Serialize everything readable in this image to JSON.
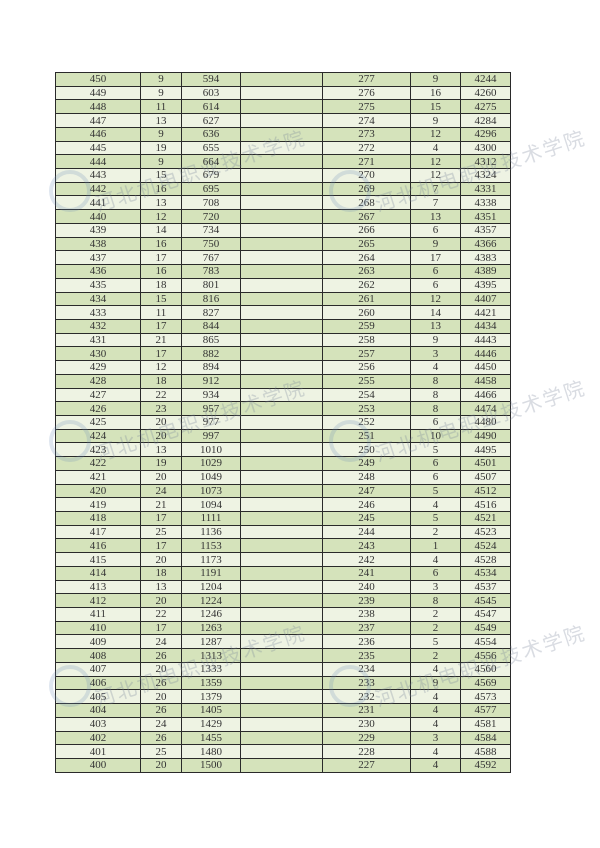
{
  "watermark": "河北机电职业技术学院",
  "colors": {
    "row_dark": "#d5e3bb",
    "row_light": "#eef3e3",
    "border": "#2a2a2a"
  },
  "rows": [
    [
      "450",
      "9",
      "594",
      "",
      "277",
      "9",
      "4244"
    ],
    [
      "449",
      "9",
      "603",
      "",
      "276",
      "16",
      "4260"
    ],
    [
      "448",
      "11",
      "614",
      "",
      "275",
      "15",
      "4275"
    ],
    [
      "447",
      "13",
      "627",
      "",
      "274",
      "9",
      "4284"
    ],
    [
      "446",
      "9",
      "636",
      "",
      "273",
      "12",
      "4296"
    ],
    [
      "445",
      "19",
      "655",
      "",
      "272",
      "4",
      "4300"
    ],
    [
      "444",
      "9",
      "664",
      "",
      "271",
      "12",
      "4312"
    ],
    [
      "443",
      "15",
      "679",
      "",
      "270",
      "12",
      "4324"
    ],
    [
      "442",
      "16",
      "695",
      "",
      "269",
      "7",
      "4331"
    ],
    [
      "441",
      "13",
      "708",
      "",
      "268",
      "7",
      "4338"
    ],
    [
      "440",
      "12",
      "720",
      "",
      "267",
      "13",
      "4351"
    ],
    [
      "439",
      "14",
      "734",
      "",
      "266",
      "6",
      "4357"
    ],
    [
      "438",
      "16",
      "750",
      "",
      "265",
      "9",
      "4366"
    ],
    [
      "437",
      "17",
      "767",
      "",
      "264",
      "17",
      "4383"
    ],
    [
      "436",
      "16",
      "783",
      "",
      "263",
      "6",
      "4389"
    ],
    [
      "435",
      "18",
      "801",
      "",
      "262",
      "6",
      "4395"
    ],
    [
      "434",
      "15",
      "816",
      "",
      "261",
      "12",
      "4407"
    ],
    [
      "433",
      "11",
      "827",
      "",
      "260",
      "14",
      "4421"
    ],
    [
      "432",
      "17",
      "844",
      "",
      "259",
      "13",
      "4434"
    ],
    [
      "431",
      "21",
      "865",
      "",
      "258",
      "9",
      "4443"
    ],
    [
      "430",
      "17",
      "882",
      "",
      "257",
      "3",
      "4446"
    ],
    [
      "429",
      "12",
      "894",
      "",
      "256",
      "4",
      "4450"
    ],
    [
      "428",
      "18",
      "912",
      "",
      "255",
      "8",
      "4458"
    ],
    [
      "427",
      "22",
      "934",
      "",
      "254",
      "8",
      "4466"
    ],
    [
      "426",
      "23",
      "957",
      "",
      "253",
      "8",
      "4474"
    ],
    [
      "425",
      "20",
      "977",
      "",
      "252",
      "6",
      "4480"
    ],
    [
      "424",
      "20",
      "997",
      "",
      "251",
      "10",
      "4490"
    ],
    [
      "423",
      "13",
      "1010",
      "",
      "250",
      "5",
      "4495"
    ],
    [
      "422",
      "19",
      "1029",
      "",
      "249",
      "6",
      "4501"
    ],
    [
      "421",
      "20",
      "1049",
      "",
      "248",
      "6",
      "4507"
    ],
    [
      "420",
      "24",
      "1073",
      "",
      "247",
      "5",
      "4512"
    ],
    [
      "419",
      "21",
      "1094",
      "",
      "246",
      "4",
      "4516"
    ],
    [
      "418",
      "17",
      "1111",
      "",
      "245",
      "5",
      "4521"
    ],
    [
      "417",
      "25",
      "1136",
      "",
      "244",
      "2",
      "4523"
    ],
    [
      "416",
      "17",
      "1153",
      "",
      "243",
      "1",
      "4524"
    ],
    [
      "415",
      "20",
      "1173",
      "",
      "242",
      "4",
      "4528"
    ],
    [
      "414",
      "18",
      "1191",
      "",
      "241",
      "6",
      "4534"
    ],
    [
      "413",
      "13",
      "1204",
      "",
      "240",
      "3",
      "4537"
    ],
    [
      "412",
      "20",
      "1224",
      "",
      "239",
      "8",
      "4545"
    ],
    [
      "411",
      "22",
      "1246",
      "",
      "238",
      "2",
      "4547"
    ],
    [
      "410",
      "17",
      "1263",
      "",
      "237",
      "2",
      "4549"
    ],
    [
      "409",
      "24",
      "1287",
      "",
      "236",
      "5",
      "4554"
    ],
    [
      "408",
      "26",
      "1313",
      "",
      "235",
      "2",
      "4556"
    ],
    [
      "407",
      "20",
      "1333",
      "",
      "234",
      "4",
      "4560"
    ],
    [
      "406",
      "26",
      "1359",
      "",
      "233",
      "9",
      "4569"
    ],
    [
      "405",
      "20",
      "1379",
      "",
      "232",
      "4",
      "4573"
    ],
    [
      "404",
      "26",
      "1405",
      "",
      "231",
      "4",
      "4577"
    ],
    [
      "403",
      "24",
      "1429",
      "",
      "230",
      "4",
      "4581"
    ],
    [
      "402",
      "26",
      "1455",
      "",
      "229",
      "3",
      "4584"
    ],
    [
      "401",
      "25",
      "1480",
      "",
      "228",
      "4",
      "4588"
    ],
    [
      "400",
      "20",
      "1500",
      "",
      "227",
      "4",
      "4592"
    ]
  ]
}
